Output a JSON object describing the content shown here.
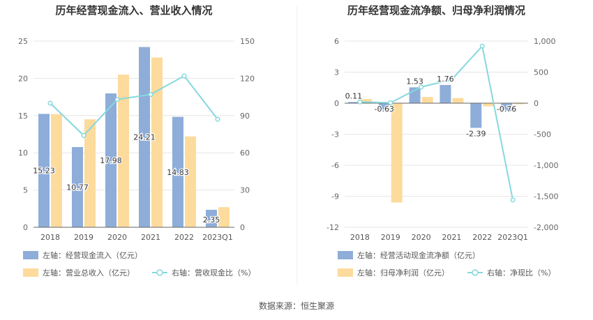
{
  "source": "数据来源：恒生聚源",
  "chart_data": [
    {
      "type": "bar",
      "title": "历年经营现金流入、营业收入情况",
      "categories": [
        "2018",
        "2019",
        "2020",
        "2021",
        "2022",
        "2023Q1"
      ],
      "left_axis": {
        "ylim": [
          0,
          25
        ],
        "ticks": [
          "0",
          "5",
          "10",
          "15",
          "20",
          "25"
        ]
      },
      "right_axis": {
        "ylim": [
          0,
          150
        ],
        "ticks": [
          "0",
          "30",
          "60",
          "90",
          "120",
          "150"
        ]
      },
      "grid": true,
      "legend_position": "bottom-left",
      "series": [
        {
          "name": "左轴：经营现金流入（亿元）",
          "kind": "bar",
          "axis": "left",
          "color": "#8eadd9",
          "values": [
            15.23,
            10.77,
            17.98,
            24.21,
            14.83,
            2.35
          ],
          "labels": [
            "15.23",
            "10.77",
            "17.98",
            "24.21",
            "14.83",
            "2.35"
          ]
        },
        {
          "name": "左轴：营业总收入（亿元）",
          "kind": "bar",
          "axis": "left",
          "color": "#fddb9d",
          "values": [
            15.2,
            14.5,
            20.5,
            22.8,
            12.2,
            2.7
          ]
        },
        {
          "name": "右轴：营收现金比（%）",
          "kind": "line",
          "axis": "right",
          "color": "#86d8dc",
          "values": [
            100,
            74,
            103,
            107,
            122,
            87
          ]
        }
      ]
    },
    {
      "type": "bar",
      "title": "历年经营现金流净额、归母净利润情况",
      "categories": [
        "2018",
        "2019",
        "2020",
        "2021",
        "2022",
        "2023Q1"
      ],
      "left_axis": {
        "ylim": [
          -12,
          6
        ],
        "ticks": [
          "-12",
          "-9",
          "-6",
          "-3",
          "0",
          "3",
          "6"
        ]
      },
      "right_axis": {
        "ylim": [
          -2000,
          1000
        ],
        "ticks": [
          "-2,000",
          "-1,500",
          "-1,000",
          "-500",
          "0",
          "500",
          "1,000"
        ]
      },
      "grid": true,
      "legend_position": "bottom-left",
      "series": [
        {
          "name": "左轴：经营活动现金流净额（亿元）",
          "kind": "bar",
          "axis": "left",
          "color": "#8eadd9",
          "values": [
            0.11,
            -0.63,
            1.53,
            1.76,
            -2.39,
            -0.76
          ],
          "labels": [
            "0.11",
            "-0.63",
            "1.53",
            "1.76",
            "-2.39",
            "-0.76"
          ]
        },
        {
          "name": "左轴：归母净利润（亿元）",
          "kind": "bar",
          "axis": "left",
          "color": "#fddb9d",
          "values": [
            0.4,
            -9.6,
            0.6,
            0.5,
            -0.3,
            -0.1
          ]
        },
        {
          "name": "右轴：净现比（%）",
          "kind": "line",
          "axis": "right",
          "color": "#86d8dc",
          "values": [
            20,
            7,
            260,
            380,
            920,
            -1560
          ]
        }
      ]
    }
  ]
}
